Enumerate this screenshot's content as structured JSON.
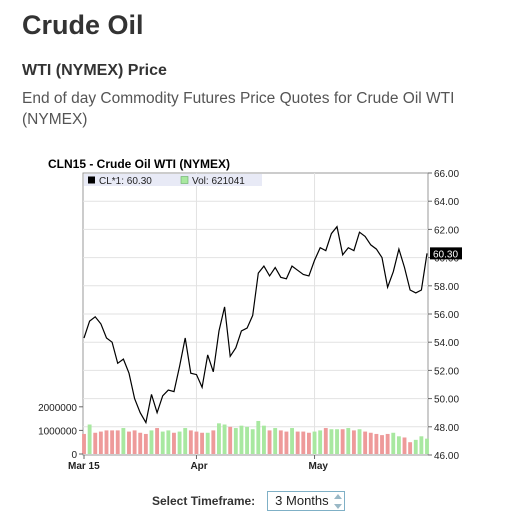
{
  "page": {
    "title": "Crude Oil",
    "subtitle": "WTI (NYMEX) Price",
    "description": "End of day Commodity Futures Price Quotes for Crude Oil WTI (NYMEX)"
  },
  "timeframe": {
    "label": "Select Timeframe:",
    "value": "3 Months"
  },
  "colors": {
    "price_line": "#000000",
    "volume_up": "#a8e8a0",
    "volume_down": "#ee9a9a",
    "legend_bg": "#e8eaf6",
    "last_price_bg": "#000000"
  },
  "chart_data": {
    "type": "line",
    "title": "CLN15 - Crude Oil WTI (NYMEX)",
    "legend": [
      {
        "label": "CL*1: 60.30",
        "color": "#000000"
      },
      {
        "label": "Vol: 621041",
        "color": "#a8e8a0"
      }
    ],
    "last_price_label": "60.30",
    "x_ticks": [
      "Mar 15",
      "Apr",
      "May"
    ],
    "y_ticks": [
      "66.00",
      "64.00",
      "62.00",
      "60.00",
      "58.00",
      "56.00",
      "54.00",
      "52.00",
      "50.00",
      "48.00",
      "46.00"
    ],
    "ylim": [
      46,
      66
    ],
    "volume_ticks": [
      "2000000",
      "1000000",
      "0"
    ],
    "volume_lim": [
      0,
      2500000
    ],
    "price": [
      54.3,
      55.5,
      55.8,
      55.3,
      54.3,
      54.0,
      52.5,
      52.8,
      51.8,
      50.0,
      49.0,
      48.3,
      50.3,
      49.0,
      50.2,
      50.6,
      50.5,
      52.3,
      54.3,
      51.8,
      51.7,
      50.8,
      53.1,
      51.9,
      54.8,
      56.5,
      53.0,
      53.6,
      54.8,
      55.0,
      55.9,
      58.9,
      59.4,
      58.7,
      59.3,
      58.6,
      58.5,
      59.4,
      59.1,
      58.8,
      58.7,
      59.8,
      60.7,
      60.5,
      61.7,
      62.2,
      60.2,
      60.7,
      60.5,
      61.8,
      61.5,
      60.9,
      60.6,
      60.0,
      57.9,
      59.0,
      60.6,
      59.3,
      57.7,
      57.5,
      57.7,
      60.3
    ],
    "volume": [
      850000,
      1250000,
      900000,
      950000,
      1000000,
      1000000,
      1000000,
      1100000,
      950000,
      1000000,
      900000,
      850000,
      1000000,
      1100000,
      950000,
      1000000,
      900000,
      950000,
      1100000,
      1000000,
      950000,
      900000,
      900000,
      1000000,
      1300000,
      1250000,
      1150000,
      1100000,
      1200000,
      1150000,
      1050000,
      1400000,
      1200000,
      1000000,
      1100000,
      1000000,
      950000,
      1100000,
      950000,
      950000,
      900000,
      950000,
      1000000,
      1100000,
      1050000,
      1050000,
      1050000,
      1100000,
      1000000,
      1050000,
      950000,
      900000,
      850000,
      800000,
      850000,
      900000,
      750000,
      700000,
      500000,
      600000,
      750000,
      650000
    ],
    "volume_colors": [
      "down",
      "up",
      "down",
      "down",
      "down",
      "down",
      "down",
      "up",
      "down",
      "down",
      "down",
      "down",
      "up",
      "down",
      "up",
      "up",
      "down",
      "up",
      "up",
      "down",
      "down",
      "down",
      "up",
      "down",
      "up",
      "up",
      "down",
      "up",
      "up",
      "up",
      "up",
      "up",
      "up",
      "down",
      "up",
      "down",
      "down",
      "up",
      "down",
      "down",
      "down",
      "up",
      "up",
      "down",
      "up",
      "up",
      "down",
      "up",
      "down",
      "up",
      "down",
      "down",
      "down",
      "down",
      "down",
      "up",
      "up",
      "down",
      "down",
      "up",
      "up",
      "up"
    ],
    "grid": true
  }
}
